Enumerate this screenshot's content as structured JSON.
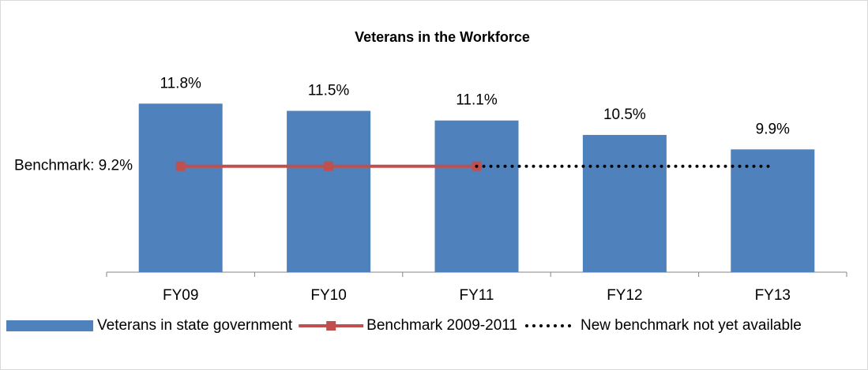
{
  "chart_data": {
    "type": "bar",
    "title": "Veterans in the Workforce",
    "categories": [
      "FY09",
      "FY10",
      "FY11",
      "FY12",
      "FY13"
    ],
    "ylim": [
      4.8,
      12.5
    ],
    "series": [
      {
        "name": "Veterans in state government",
        "type": "bar",
        "color": "#4f81bd",
        "values": [
          11.8,
          11.5,
          11.1,
          10.5,
          9.9
        ],
        "value_labels": [
          "11.8%",
          "11.5%",
          "11.1%",
          "10.5%",
          "9.9%"
        ]
      },
      {
        "name": "Benchmark 2009-2011",
        "type": "line",
        "color": "#c0504d",
        "marker": "square",
        "values": [
          9.2,
          9.2,
          9.2,
          null,
          null
        ]
      },
      {
        "name": "New benchmark not yet available",
        "type": "line",
        "color": "#000000",
        "dash": "dotted",
        "values": [
          null,
          null,
          9.2,
          9.2,
          9.2
        ]
      }
    ],
    "annotations": [
      {
        "text": "Benchmark: 9.2%"
      }
    ],
    "legend": "bottom"
  }
}
